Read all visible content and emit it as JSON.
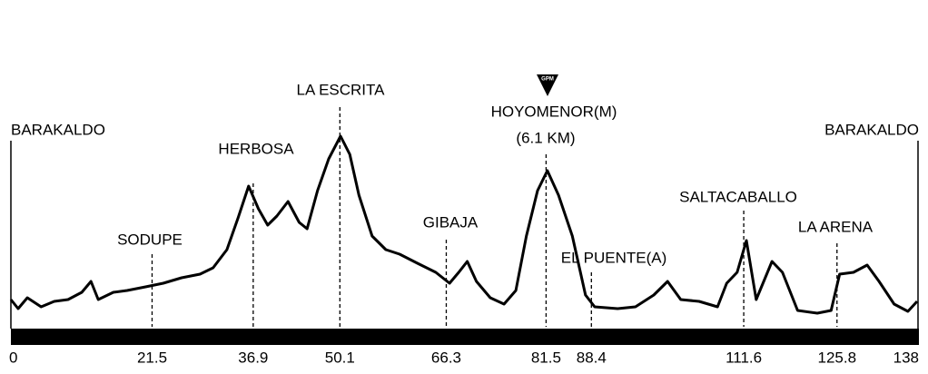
{
  "chart_data": {
    "type": "line",
    "xticks": [
      0,
      21.5,
      36.9,
      50.1,
      66.3,
      81.5,
      88.4,
      111.6,
      125.8,
      138
    ],
    "xlim": [
      0,
      138
    ],
    "ylim": [
      0,
      220
    ],
    "place_labels": [
      "BARAKALDO",
      "SODUPE",
      "HERBOSA",
      "LA ESCRITA",
      "GIBAJA",
      "HOYOMENOR(M)",
      "EL PUENTE(A)",
      "SALTACABALLO",
      "LA ARENA",
      "BARAKALDO"
    ],
    "climb_distance": "(6.1 KM)",
    "climb_icon": "GPM",
    "series": [
      {
        "color": "#000000",
        "x": [
          0,
          1.1,
          2.5,
          4.6,
          6.6,
          8.7,
          10.8,
          12.2,
          13.3,
          15.6,
          17.7,
          20.5,
          23.2,
          26.0,
          28.8,
          30.8,
          32.9,
          34.6,
          36.2,
          37.7,
          39.1,
          40.5,
          42.2,
          43.9,
          45.1,
          46.7,
          48.4,
          50.2,
          51.6,
          53.0,
          55.0,
          57.1,
          59.2,
          61.9,
          64.7,
          66.8,
          68.2,
          69.5,
          70.9,
          73.0,
          75.1,
          76.9,
          78.5,
          80.2,
          81.7,
          83.4,
          85.5,
          87.5,
          88.9,
          92.4,
          95.1,
          97.9,
          100.0,
          102.0,
          104.8,
          107.6,
          109.0,
          110.6,
          112.0,
          113.5,
          115.9,
          117.5,
          119.8,
          122.8,
          124.9,
          126.2,
          128.3,
          130.4,
          132.2,
          134.5,
          136.6,
          138.0
        ],
        "values": [
          32,
          22,
          34,
          24,
          30,
          32,
          40,
          52,
          32,
          40,
          42,
          46,
          50,
          56,
          60,
          67,
          87,
          122,
          157,
          132,
          114,
          124,
          140,
          117,
          110,
          152,
          187,
          212,
          192,
          147,
          102,
          87,
          82,
          72,
          62,
          50,
          62,
          74,
          52,
          34,
          27,
          42,
          102,
          152,
          174,
          147,
          102,
          37,
          24,
          22,
          24,
          37,
          52,
          32,
          30,
          24,
          50,
          62,
          97,
          32,
          74,
          62,
          20,
          17,
          20,
          60,
          62,
          70,
          52,
          27,
          19,
          30
        ]
      }
    ]
  }
}
